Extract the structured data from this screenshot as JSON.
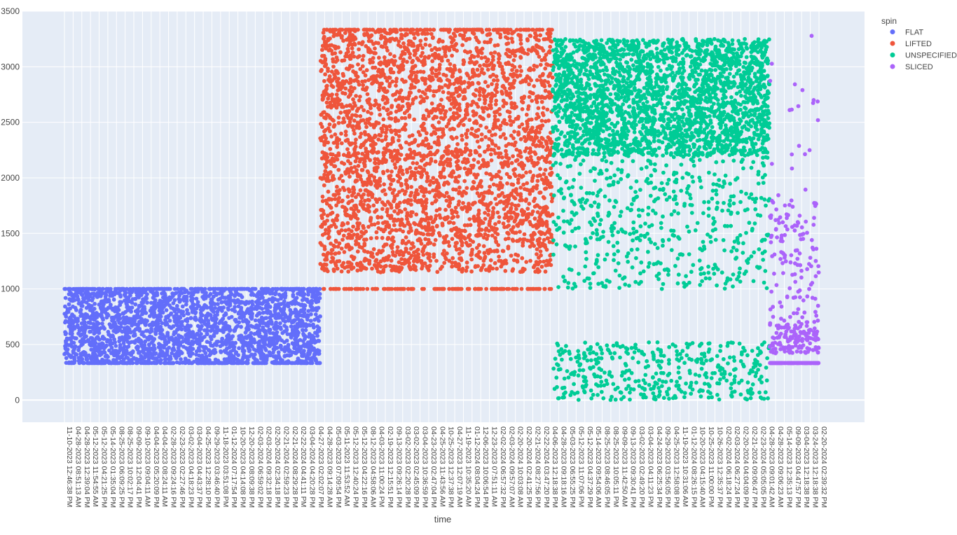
{
  "chart_data": {
    "type": "scatter",
    "xlabel": "time",
    "ylabel": "",
    "ylim": [
      -200,
      3500
    ],
    "y_ticks": [
      0,
      500,
      1000,
      1500,
      2000,
      2500,
      3000,
      3500
    ],
    "grid": true,
    "legend": {
      "title": "spin",
      "placement": "top-right"
    },
    "x_tick_labels": [
      "11-10-2023 12:46:38 PM",
      "04-28-2023 08:51:13 AM",
      "04-28-2023 12:39:04 PM",
      "05-12-2023 11:54:55 AM",
      "05-12-2023 04:21:25 PM",
      "05-14-2023 01:35:04 PM",
      "08-25-2023 06:09:25 PM",
      "08-25-2023 10:02:17 PM",
      "09-09-2023 12:04:41 PM",
      "09-10-2023 09:04:11 AM",
      "04-04-2023 05:20:09 PM",
      "04-04-2023 08:24:11 AM",
      "02-28-2023 09:24:16 PM",
      "02-23-2023 02:27:46 PM",
      "03-02-2023 04:18:23 PM",
      "03-04-2023 04:43:37 PM",
      "04-25-2023 12:28:10 PM",
      "09-29-2023 03:46:40 PM",
      "11-18-2023 03:51:08 PM",
      "01-12-2024 07:17:54 PM",
      "10-20-2023 04:14:08 PM",
      "12-20-2023 08:09:38 PM",
      "02-03-2024 06:59:02 PM",
      "02-03-2024 09:32:18 PM",
      "02-20-2024 02:34:18 PM",
      "02-21-2024 02:59:23 PM",
      "02-21-2024 08:29:28 PM",
      "02-22-2024 04:41:11 PM",
      "03-04-2024 04:20:28 PM",
      "04-27-2023 02:02:07 PM",
      "04-28-2023 09:14:28 AM",
      "05-03-2023 07:09:54 PM",
      "05-11-2023 11:53:52 AM",
      "05-12-2023 12:40:24 PM",
      "05-12-2023 04:22:16 PM",
      "08-12-2023 04:58:06 AM",
      "04-03-2023 11:00:24 PM",
      "02-19-2023 12:15:51 PM",
      "09-13-2023 09:26:14 PM",
      "03-02-2023 02:20:28 PM",
      "03-02-2023 02:45:09 PM",
      "03-04-2023 10:36:59 PM",
      "04-23-2023 02:47:04 PM",
      "04-25-2023 11:43:56 AM",
      "10-25-2023 12:37:38 PM",
      "04-27-2023 12:07:19 AM",
      "11-19-2023 10:35:20 AM",
      "01-12-2024 08:04:24 PM",
      "12-06-2023 10:06:54 PM",
      "12-23-2023 07:51:11 AM",
      "02-02-2024 06:57:32 PM",
      "02-03-2024 09:57:07 AM",
      "02-20-2024 10:03:08 AM",
      "02-20-2024 02:41:25 PM",
      "02-21-2024 08:27:56 PM",
      "02-22-2024 03:47:20 PM",
      "04-06-2023 12:18:38 PM",
      "04-28-2023 09:18:16 AM",
      "05-03-2023 06:55:25 PM",
      "05-12-2023 11:07:06 PM",
      "05-12-2023 04:37:29 PM",
      "05-14-2023 09:54:06 AM",
      "08-25-2023 08:46:05 PM",
      "08-25-2023 10:05:11 PM",
      "09-09-2023 11:42:50 AM",
      "09-13-2023 09:30:41 PM",
      "03-02-2023 02:49:20 PM",
      "03-04-2023 04:11:23 PM",
      "04-24-2023 06:25:34 PM",
      "09-29-2023 03:56:05 PM",
      "04-25-2023 12:58:08 PM",
      "11-19-2023 10:31:06 AM",
      "01-12-2024 08:26:15 PM",
      "10-20-2023 04:15:40 AM",
      "10-25-2023 11:00:00 PM",
      "10-26-2023 12:35:37 PM",
      "02-02-2024 06:18:24 PM",
      "02-03-2024 06:27:24 PM",
      "02-20-2024 04:04:09 PM",
      "02-21-2024 09:06:47 PM",
      "02-23-2024 05:05:05 PM",
      "04-28-2023 09:01:42 AM",
      "04-28-2023 09:06:23 AM",
      "05-14-2023 12:35:13 PM",
      "09-09-2023 04:47:57 PM",
      "03-04-2023 12:18:38 PM",
      "03-24-2023 12:18:38 PM",
      "02-20-2024 02:39:32 PM"
    ],
    "series": [
      {
        "name": "FLAT",
        "color": "#636efa",
        "x_range": [
          0,
          29.5
        ],
        "y_range": [
          333,
          1000
        ],
        "caps": [
          333,
          1000
        ],
        "n_points": 2600
      },
      {
        "name": "LIFTED",
        "color": "#ef553b",
        "x_range": [
          29.5,
          56.3
        ],
        "y_range": [
          1000,
          3333
        ],
        "caps": [
          1000,
          3333
        ],
        "n_points": 3500
      },
      {
        "name": "UNSPECIFIED",
        "color": "#00cc96",
        "x_range": [
          56.3,
          81.3
        ],
        "y_range": [
          0,
          3333
        ],
        "dense_band": [
          2200,
          3250
        ],
        "n_points": 3500
      },
      {
        "name": "SLICED",
        "color": "#ab63fa",
        "x_range": [
          81.3,
          87
        ],
        "y_range": [
          333,
          3300
        ],
        "cap": 333,
        "n_points": 420
      }
    ]
  }
}
